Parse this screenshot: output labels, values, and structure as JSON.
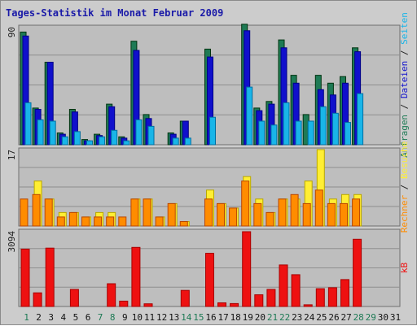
{
  "chart_data": {
    "type": "bar",
    "title": "Tages-Statistik im Monat Februar 2009",
    "x": [
      "1",
      "2",
      "3",
      "4",
      "5",
      "6",
      "7",
      "8",
      "9",
      "10",
      "11",
      "12",
      "13",
      "14",
      "15",
      "16",
      "17",
      "18",
      "19",
      "20",
      "21",
      "22",
      "23",
      "24",
      "25",
      "26",
      "27",
      "28",
      "29",
      "30",
      "31"
    ],
    "weekend_days": [
      "1",
      "7",
      "8",
      "14",
      "15",
      "21",
      "22",
      "28",
      "29"
    ],
    "colors": {
      "anfragen": "#1e7a55",
      "dateien": "#1010cc",
      "seiten": "#19b5e8",
      "besuche": "#ffee33",
      "rechner": "#ff8c00",
      "kb": "#ee1111",
      "weekday_label": "#111111",
      "weekend_label": "#1e7a55",
      "plot_bg": "#bebebe",
      "frame_bg": "#cccccc"
    },
    "panels": [
      {
        "id": "hits",
        "ytick": "90",
        "ylim": [
          0,
          90
        ],
        "legend": [
          "Anfragen",
          " / ",
          "Dateien",
          " / ",
          "Seiten"
        ],
        "series": [
          {
            "name": "Anfragen",
            "color_key": "anfragen",
            "values": [
              86,
              28,
              63,
              9,
              27,
              4,
              8,
              31,
              6,
              79,
              23,
              0,
              9,
              18,
              0,
              73,
              0,
              0,
              92,
              28,
              33,
              80,
              53,
              23,
              53,
              47,
              52,
              74,
              0,
              0,
              0
            ]
          },
          {
            "name": "Dateien",
            "color_key": "dateien",
            "values": [
              83,
              27,
              63,
              8,
              25,
              3,
              7,
              29,
              5,
              72,
              20,
              0,
              8,
              18,
              0,
              67,
              0,
              0,
              87,
              26,
              31,
              74,
              47,
              0,
              42,
              38,
              47,
              71,
              0,
              0,
              0
            ]
          },
          {
            "name": "Seiten",
            "color_key": "seiten",
            "values": [
              32,
              19,
              18,
              6,
              10,
              3,
              6,
              11,
              3,
              19,
              14,
              0,
              5,
              5,
              0,
              21,
              0,
              0,
              44,
              18,
              15,
              32,
              18,
              18,
              29,
              24,
              17,
              39,
              0,
              0,
              0
            ]
          }
        ]
      },
      {
        "id": "visits",
        "ytick": "17",
        "ylim": [
          0,
          17
        ],
        "legend": [
          "Rechner",
          " / ",
          "Besuche"
        ],
        "series": [
          {
            "name": "Besuche",
            "color_key": "besuche",
            "values": [
              0,
              10,
              6,
              3,
              3,
              2,
              3,
              3,
              0,
              6,
              6,
              2,
              5,
              1,
              0,
              8,
              5,
              4,
              11,
              6,
              3,
              6,
              6,
              10,
              17,
              6,
              7,
              7,
              0,
              0,
              0
            ]
          },
          {
            "name": "Rechner",
            "color_key": "rechner",
            "values": [
              6,
              7,
              6,
              2,
              3,
              2,
              2,
              2,
              2,
              6,
              6,
              2,
              5,
              1,
              0,
              6,
              5,
              4,
              10,
              5,
              3,
              6,
              7,
              5,
              8,
              5,
              5,
              6,
              0,
              0,
              0
            ]
          }
        ]
      },
      {
        "id": "kb",
        "ytick": "3094",
        "ylim": [
          0,
          3094
        ],
        "legend": [
          "kB"
        ],
        "series": [
          {
            "name": "kB",
            "color_key": "kb",
            "values": [
              2350,
              560,
              2390,
              0,
              700,
              0,
              0,
              930,
              220,
              2420,
              110,
              0,
              0,
              660,
              0,
              2180,
              150,
              120,
              3060,
              480,
              700,
              1700,
              1300,
              70,
              730,
              770,
              1100,
              2750,
              0,
              0,
              0
            ]
          }
        ]
      }
    ]
  }
}
